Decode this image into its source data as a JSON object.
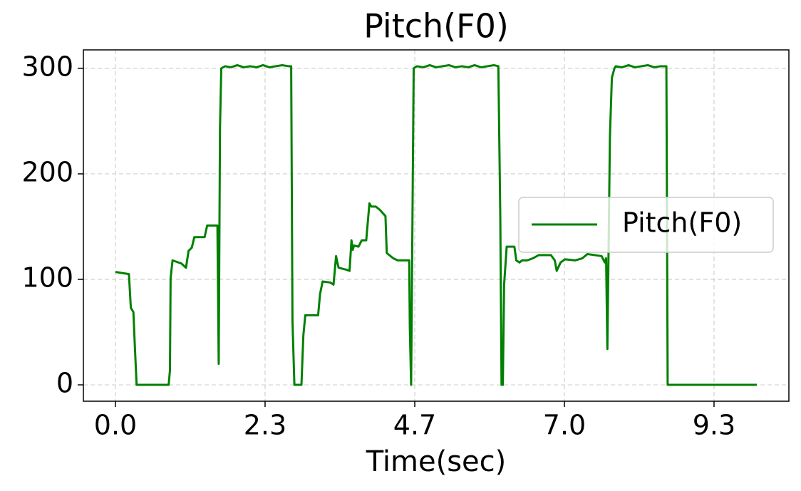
{
  "chart_data": {
    "type": "line",
    "title": "Pitch(F0)",
    "x_label": "Time(sec)",
    "x": [
      0,
      0.21,
      0.24,
      0.28,
      0.3,
      0.33,
      0.83,
      0.85,
      0.86,
      0.89,
      1.03,
      1.1,
      1.14,
      1.19,
      1.23,
      1.39,
      1.43,
      1.56,
      1.59,
      1.61,
      1.63,
      1.65,
      1.71,
      1.8,
      1.9,
      2.0,
      2.1,
      2.2,
      2.3,
      2.4,
      2.5,
      2.6,
      2.7,
      2.74,
      2.76,
      2.79,
      2.9,
      2.93,
      2.96,
      3.16,
      3.19,
      3.23,
      3.35,
      3.4,
      3.44,
      3.46,
      3.48,
      3.61,
      3.65,
      3.68,
      3.7,
      3.72,
      3.79,
      3.84,
      3.91,
      3.96,
      3.99,
      4.06,
      4.12,
      4.21,
      4.23,
      4.33,
      4.4,
      4.55,
      4.58,
      4.59,
      4.61,
      4.65,
      4.7,
      4.8,
      4.9,
      5.0,
      5.1,
      5.2,
      5.3,
      5.4,
      5.5,
      5.6,
      5.7,
      5.8,
      5.9,
      5.97,
      6.0,
      6.02,
      6.04,
      6.06,
      6.1,
      6.22,
      6.25,
      6.3,
      6.34,
      6.42,
      6.51,
      6.6,
      6.79,
      6.85,
      6.88,
      6.94,
      7.01,
      7.17,
      7.28,
      7.36,
      7.47,
      7.58,
      7.63,
      7.65,
      7.67,
      7.71,
      7.74,
      7.78,
      7.8,
      7.9,
      8.0,
      8.1,
      8.2,
      8.3,
      8.4,
      8.5,
      8.59,
      8.61,
      10.0
    ],
    "series": [
      {
        "name": "Pitch(F0)",
        "color": "#008000",
        "values": [
          107,
          105,
          73,
          69,
          40,
          0,
          0,
          14,
          101,
          118,
          115,
          111,
          127,
          130,
          140,
          140,
          151,
          151,
          151,
          20,
          243,
          300,
          302,
          301,
          303,
          301,
          302,
          301,
          303,
          301,
          302,
          303,
          302,
          302,
          61,
          0,
          0,
          47,
          66,
          66,
          86,
          98,
          97,
          95,
          122,
          116,
          111,
          109,
          108,
          137,
          128,
          132,
          131,
          137,
          137,
          172,
          169,
          169,
          166,
          160,
          125,
          120,
          118,
          118,
          118,
          54,
          0,
          300,
          302,
          301,
          303,
          301,
          302,
          303,
          301,
          302,
          301,
          303,
          301,
          302,
          303,
          302,
          162,
          0,
          0,
          95,
          131,
          131,
          118,
          116,
          118,
          118,
          120,
          123,
          123,
          118,
          108,
          116,
          119,
          118,
          120,
          124,
          123,
          122,
          116,
          120,
          34,
          236,
          291,
          300,
          302,
          301,
          303,
          301,
          302,
          303,
          301,
          302,
          302,
          0,
          0
        ]
      }
    ],
    "xlim": [
      -0.5,
      10.5
    ],
    "xticks": [
      {
        "value": 0,
        "label": "0.0"
      },
      {
        "value": 2.333,
        "label": "2.3"
      },
      {
        "value": 4.667,
        "label": "4.7"
      },
      {
        "value": 7,
        "label": "7.0"
      },
      {
        "value": 9.333,
        "label": "9.3"
      }
    ],
    "ylim": [
      -15.5,
      317.5
    ],
    "yticks": [
      0,
      100,
      200,
      300
    ],
    "grid": true,
    "legend": "center right"
  }
}
